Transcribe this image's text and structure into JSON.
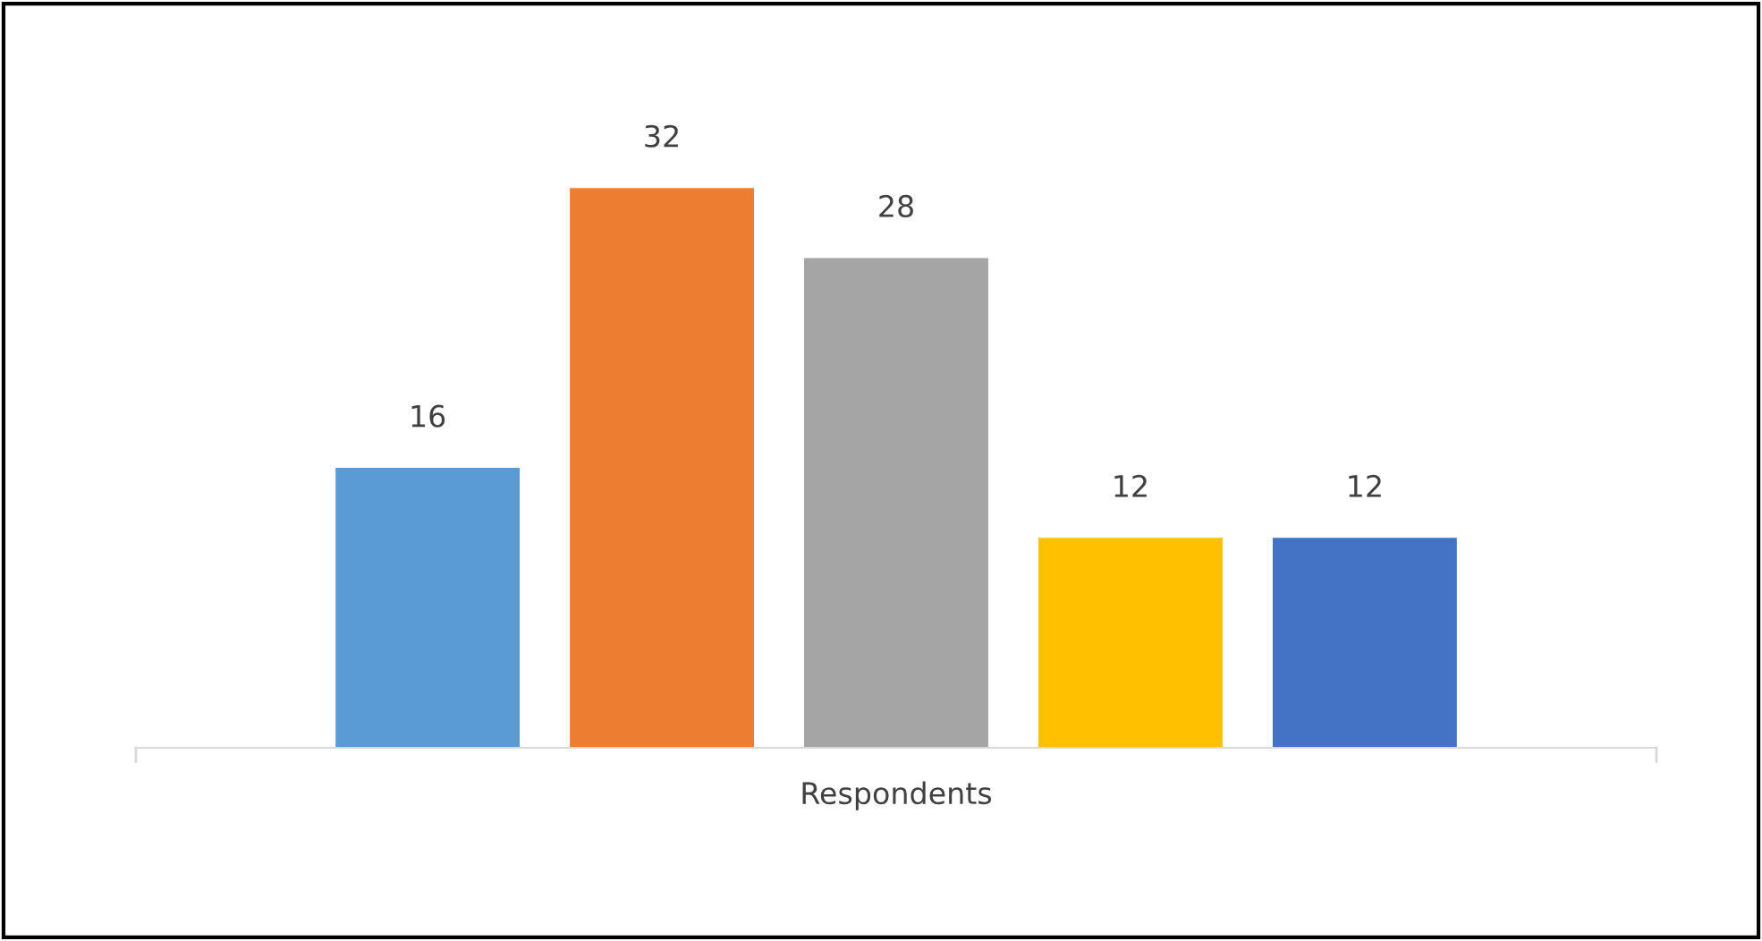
{
  "chart_data": {
    "type": "bar",
    "xlabel": "Respondents",
    "categories": [
      null,
      null,
      null,
      null,
      null
    ],
    "values": [
      16,
      32,
      28,
      12,
      12
    ],
    "colors": [
      "#5b9bd5",
      "#ed7d31",
      "#a5a5a5",
      "#ffc000",
      "#4472c4"
    ],
    "data_labels": true
  }
}
